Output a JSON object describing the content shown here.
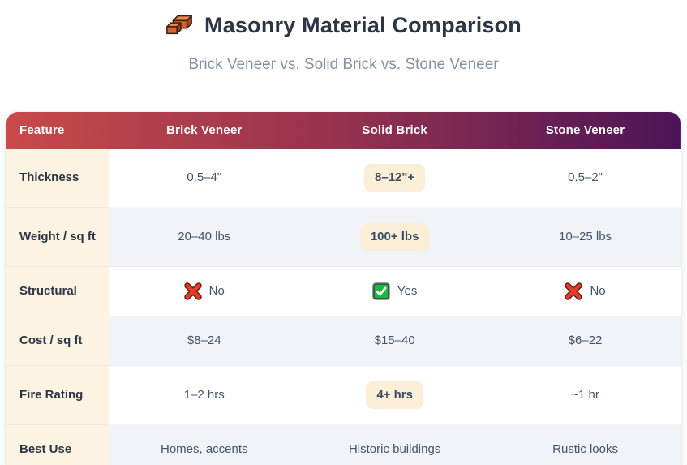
{
  "header": {
    "icon": "brick-icon",
    "title": "Masonry Material Comparison",
    "subtitle": "Brick Veneer vs. Solid Brick vs. Stone Veneer"
  },
  "table": {
    "columns": [
      "Feature",
      "Brick Veneer",
      "Solid Brick",
      "Stone Veneer"
    ],
    "rows": [
      {
        "feature": "Thickness",
        "cells": [
          {
            "text": "0.5–4\""
          },
          {
            "text": "8–12\"+",
            "highlight": true
          },
          {
            "text": "0.5–2\""
          }
        ]
      },
      {
        "feature": "Weight / sq ft",
        "cells": [
          {
            "text": "20–40 lbs"
          },
          {
            "text": "100+ lbs",
            "highlight": true
          },
          {
            "text": "10–25 lbs"
          }
        ]
      },
      {
        "feature": "Structural",
        "cells": [
          {
            "text": "No",
            "icon": "cross-icon"
          },
          {
            "text": "Yes",
            "icon": "check-icon"
          },
          {
            "text": "No",
            "icon": "cross-icon"
          }
        ]
      },
      {
        "feature": "Cost / sq ft",
        "cells": [
          {
            "text": "$8–24"
          },
          {
            "text": "$15–40"
          },
          {
            "text": "$6–22"
          }
        ]
      },
      {
        "feature": "Fire Rating",
        "cells": [
          {
            "text": "1–2 hrs"
          },
          {
            "text": "4+ hrs",
            "highlight": true
          },
          {
            "text": "~1 hr"
          }
        ]
      },
      {
        "feature": "Best Use",
        "cells": [
          {
            "text": "Homes, accents"
          },
          {
            "text": "Historic buildings"
          },
          {
            "text": "Rustic looks"
          }
        ]
      }
    ]
  },
  "colors": {
    "header_gradient_start": "#c94a4a",
    "header_gradient_end": "#4b1457",
    "feature_column_bg": "#fdf3e2",
    "alt_row_bg": "#f0f3f7",
    "highlight_badge_bg": "#fcefd8",
    "title_text": "#2b3544",
    "subtitle_text": "#8492a6",
    "cell_text": "#44536b",
    "cross_icon_color": "#e23d2a",
    "check_icon_color": "#1db954"
  }
}
